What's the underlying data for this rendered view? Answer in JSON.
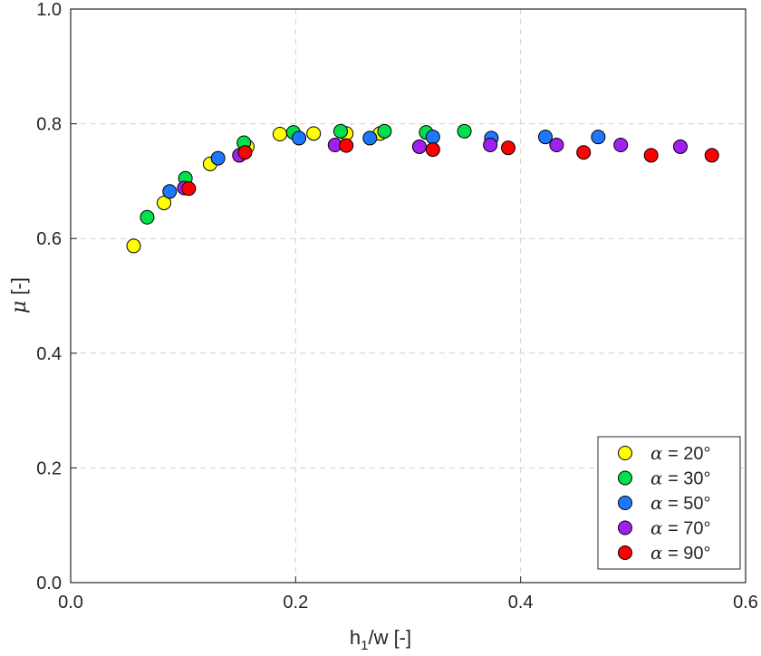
{
  "chart_data": {
    "type": "scatter",
    "title": "",
    "xlabel": {
      "main": "h",
      "sub": "1",
      "rest": "/w [-]"
    },
    "ylabel": {
      "symbol": "μ",
      "rest": " [-]"
    },
    "xlim": [
      0,
      0.6
    ],
    "ylim": [
      0,
      1.0
    ],
    "xticks": [
      "0.0",
      "0.2",
      "0.4",
      "0.6"
    ],
    "yticks": [
      "0.0",
      "0.2",
      "0.4",
      "0.6",
      "0.8",
      "1.0"
    ],
    "grid": true,
    "legend_position": "bottom-right",
    "series": [
      {
        "name": {
          "symbol": "α",
          "rest": " = 20°"
        },
        "color": "#ffff00",
        "x": [
          0.056,
          0.083,
          0.124,
          0.157,
          0.186,
          0.216,
          0.245,
          0.275
        ],
        "y": [
          0.587,
          0.662,
          0.73,
          0.76,
          0.782,
          0.783,
          0.783,
          0.783
        ]
      },
      {
        "name": {
          "symbol": "α",
          "rest": " = 30°"
        },
        "color": "#00e04a",
        "x": [
          0.068,
          0.102,
          0.154,
          0.198,
          0.24,
          0.279,
          0.316,
          0.35
        ],
        "y": [
          0.637,
          0.705,
          0.767,
          0.785,
          0.787,
          0.787,
          0.785,
          0.787
        ]
      },
      {
        "name": {
          "symbol": "α",
          "rest": " = 50°"
        },
        "color": "#1e78ff",
        "x": [
          0.088,
          0.131,
          0.203,
          0.266,
          0.322,
          0.374,
          0.422,
          0.469
        ],
        "y": [
          0.682,
          0.74,
          0.775,
          0.775,
          0.777,
          0.775,
          0.777,
          0.777
        ]
      },
      {
        "name": {
          "symbol": "α",
          "rest": " = 70°"
        },
        "color": "#a020f0",
        "x": [
          0.101,
          0.15,
          0.235,
          0.31,
          0.373,
          0.432,
          0.489,
          0.542
        ],
        "y": [
          0.688,
          0.745,
          0.763,
          0.76,
          0.763,
          0.763,
          0.763,
          0.76
        ]
      },
      {
        "name": {
          "symbol": "α",
          "rest": " = 90°"
        },
        "color": "#ff0000",
        "x": [
          0.105,
          0.155,
          0.245,
          0.322,
          0.389,
          0.456,
          0.516,
          0.57
        ],
        "y": [
          0.687,
          0.75,
          0.762,
          0.755,
          0.758,
          0.75,
          0.745,
          0.745
        ]
      }
    ]
  }
}
